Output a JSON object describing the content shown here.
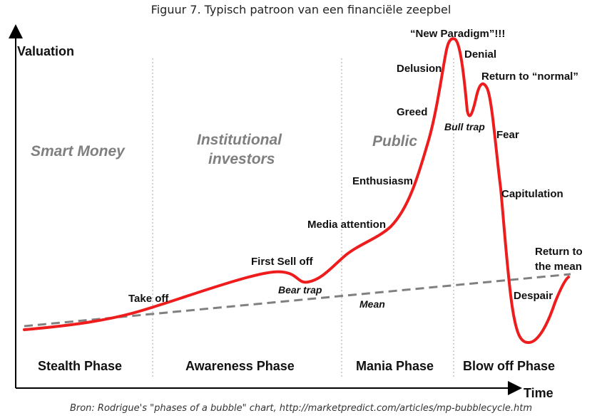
{
  "caption": "Figuur 7. Typisch patroon van een financiële zeepbel",
  "source": "Bron: Rodrigue's \"phases of a bubble\" chart, http://marketpredict.com/articles/mp-bubblecycle.htm",
  "axes": {
    "y_label": "Valuation",
    "x_label": "Time"
  },
  "groups": {
    "smart_money": "Smart Money",
    "institutional_1": "Institutional",
    "institutional_2": "investors",
    "public": "Public"
  },
  "phases": {
    "stealth": "Stealth Phase",
    "awareness": "Awareness Phase",
    "mania": "Mania Phase",
    "blowoff": "Blow off Phase"
  },
  "events": {
    "take_off": "Take off",
    "first_sell_off": "First Sell off",
    "bear_trap": "Bear trap",
    "media_attention": "Media attention",
    "enthusiasm": "Enthusiasm",
    "greed": "Greed",
    "delusion": "Delusion",
    "new_paradigm": "“New Paradigm”!!!",
    "denial": "Denial",
    "bull_trap": "Bull trap",
    "return_normal": "Return to “normal”",
    "fear": "Fear",
    "capitulation": "Capitulation",
    "despair": "Despair",
    "return_mean_1": "Return to",
    "return_mean_2": "the mean",
    "mean": "Mean"
  },
  "colors": {
    "curve": "#ee1c1c",
    "mean_line": "#808080",
    "divider": "#a6a6a6",
    "group_text": "#7f7f7f"
  }
}
